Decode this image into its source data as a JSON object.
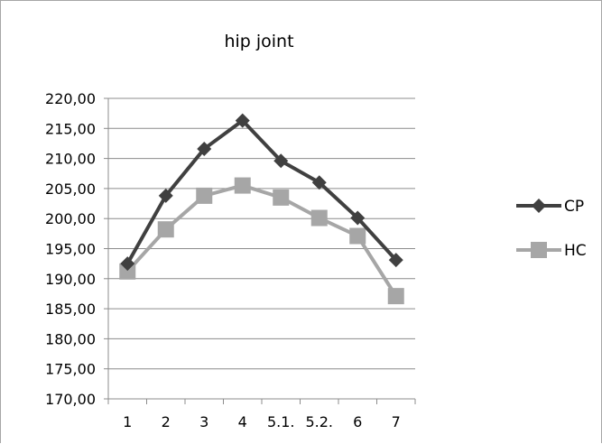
{
  "chart_data": {
    "type": "line",
    "title": "hip joint",
    "categories": [
      "1",
      "2",
      "3",
      "4",
      "5.1.",
      "5.2.",
      "6",
      "7"
    ],
    "series": [
      {
        "name": "CP",
        "color": "#404040",
        "marker": "diamond",
        "values": [
          192.5,
          203.8,
          211.6,
          216.3,
          209.6,
          206.0,
          200.1,
          193.1
        ]
      },
      {
        "name": "HC",
        "color": "#a6a6a6",
        "marker": "square",
        "values": [
          191.2,
          198.2,
          203.8,
          205.5,
          203.5,
          200.1,
          197.1,
          187.1
        ]
      }
    ],
    "y_ticks": [
      "170,00",
      "175,00",
      "180,00",
      "185,00",
      "190,00",
      "195,00",
      "200,00",
      "205,00",
      "210,00",
      "215,00",
      "220,00"
    ],
    "ylim": [
      170,
      220
    ],
    "grid": true,
    "legend_position": "right"
  }
}
